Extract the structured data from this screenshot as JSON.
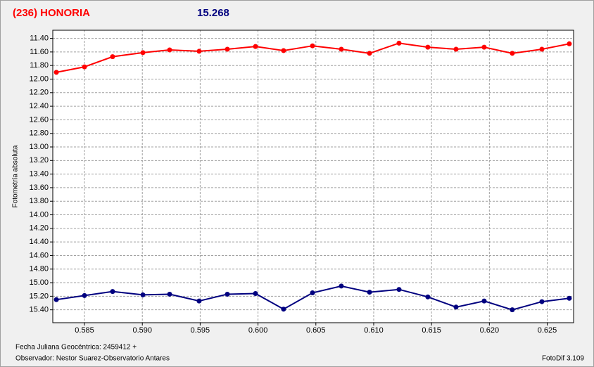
{
  "header": {
    "object": "(236) HONORIA",
    "magnitude": "15.268"
  },
  "footer": {
    "date": "Fecha Juliana Geocéntrica: 2459412 +",
    "observer": "Observador: Nestor Suarez-Observatorio Antares",
    "software": "FotoDif 3.109"
  },
  "chart_data": {
    "type": "line",
    "y_label": "Fotometría absoluta",
    "x": [
      0.58257,
      0.585,
      0.58743,
      0.59005,
      0.59236,
      0.59491,
      0.59735,
      0.59978,
      0.60221,
      0.60471,
      0.6072,
      0.60964,
      0.61219,
      0.61468,
      0.61712,
      0.61955,
      0.62198,
      0.62454,
      0.62691
    ],
    "series": [
      {
        "color": "#ff0000",
        "values": [
          11.9,
          11.82,
          11.67,
          11.61,
          11.57,
          11.59,
          11.56,
          11.52,
          11.58,
          11.51,
          11.56,
          11.62,
          11.47,
          11.53,
          11.56,
          11.53,
          11.62,
          11.56,
          11.48
        ]
      },
      {
        "color": "#00007f",
        "values": [
          15.25,
          15.19,
          15.13,
          15.18,
          15.17,
          15.27,
          15.17,
          15.16,
          15.39,
          15.15,
          15.05,
          15.14,
          15.1,
          15.21,
          15.36,
          15.27,
          15.4,
          15.28,
          15.23
        ]
      }
    ],
    "xlim": [
      0.58226,
      0.62728
    ],
    "xticks": [
      0.585,
      {
        "value": 0.59,
        "label": "0.590"
      },
      0.595,
      {
        "value": 0.6,
        "label": "0.600"
      },
      0.605,
      {
        "value": 0.61,
        "label": "0.610"
      },
      0.615,
      {
        "value": 0.62,
        "label": "0.620"
      },
      0.625
    ],
    "ylim": [
      15.59,
      11.28
    ],
    "yticks": [
      {
        "value": 11.4,
        "label": "11.40"
      },
      {
        "value": 11.6,
        "label": "11.60"
      },
      {
        "value": 11.8,
        "label": "11.80"
      },
      {
        "value": 12.0,
        "label": "12.00"
      },
      {
        "value": 12.2,
        "label": "12.20"
      },
      {
        "value": 12.4,
        "label": "12.40"
      },
      {
        "value": 12.6,
        "label": "12.60"
      },
      {
        "value": 12.8,
        "label": "12.80"
      },
      {
        "value": 13.0,
        "label": "13.00"
      },
      {
        "value": 13.2,
        "label": "13.20"
      },
      {
        "value": 13.4,
        "label": "13.40"
      },
      {
        "value": 13.6,
        "label": "13.60"
      },
      {
        "value": 13.8,
        "label": "13.80"
      },
      {
        "value": 14.0,
        "label": "14.00"
      },
      {
        "value": 14.2,
        "label": "14.20"
      },
      {
        "value": 14.4,
        "label": "14.40"
      },
      {
        "value": 14.6,
        "label": "14.60"
      },
      {
        "value": 14.8,
        "label": "14.80"
      },
      {
        "value": 15.0,
        "label": "15.00"
      },
      {
        "value": 15.2,
        "label": "15.20"
      },
      {
        "value": 15.4,
        "label": "15.40"
      }
    ],
    "grid": true
  }
}
